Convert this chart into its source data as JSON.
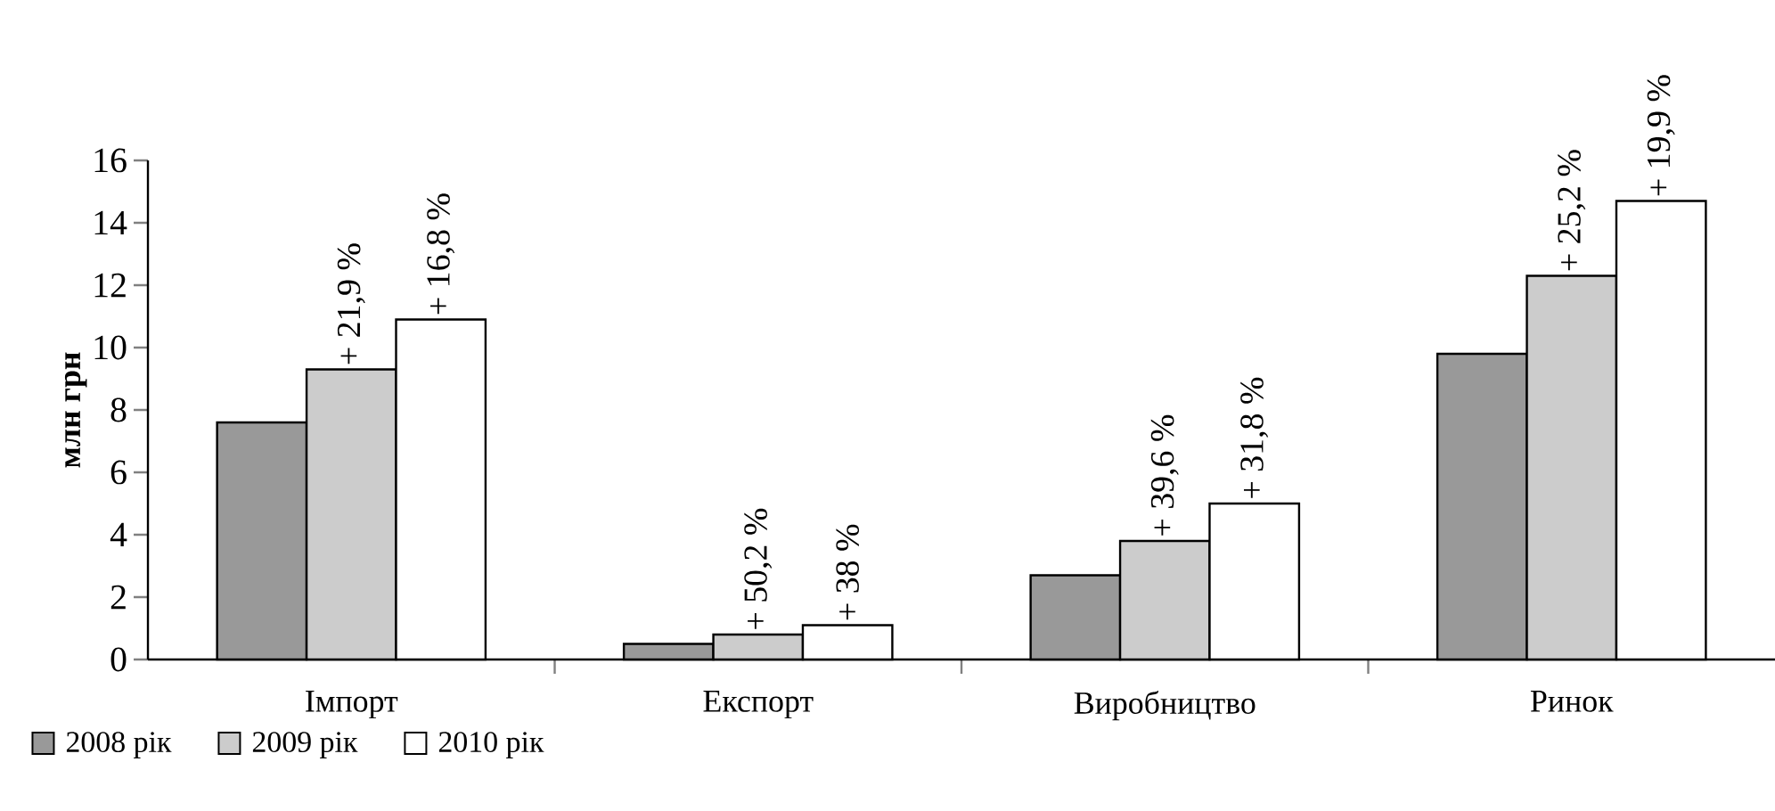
{
  "chart_data": {
    "type": "bar",
    "ylabel": "млн грн",
    "categories": [
      "Імпорт",
      "Експорт",
      "Виробництво",
      "Ринок"
    ],
    "series": [
      {
        "name": "2008 рік",
        "color": "#999999",
        "values": [
          7.6,
          0.5,
          2.7,
          9.8
        ]
      },
      {
        "name": "2009 рік",
        "color": "#cccccc",
        "values": [
          9.3,
          0.8,
          3.8,
          12.3
        ]
      },
      {
        "name": "2010 рік",
        "color": "#ffffff",
        "values": [
          10.9,
          1.1,
          5.0,
          14.7
        ]
      }
    ],
    "annotations": [
      "+ 21,9 %",
      "+ 16,8 %",
      "+ 50,2 %",
      "+ 38 %",
      "+ 39,6 %",
      "+ 31,8 %",
      "+ 25,2 %",
      "+ 19,9 %"
    ],
    "ylim": [
      0,
      16
    ],
    "yticks": [
      0,
      2,
      4,
      6,
      8,
      10,
      12,
      14,
      16
    ],
    "grid": false,
    "legend": "bottom left"
  }
}
